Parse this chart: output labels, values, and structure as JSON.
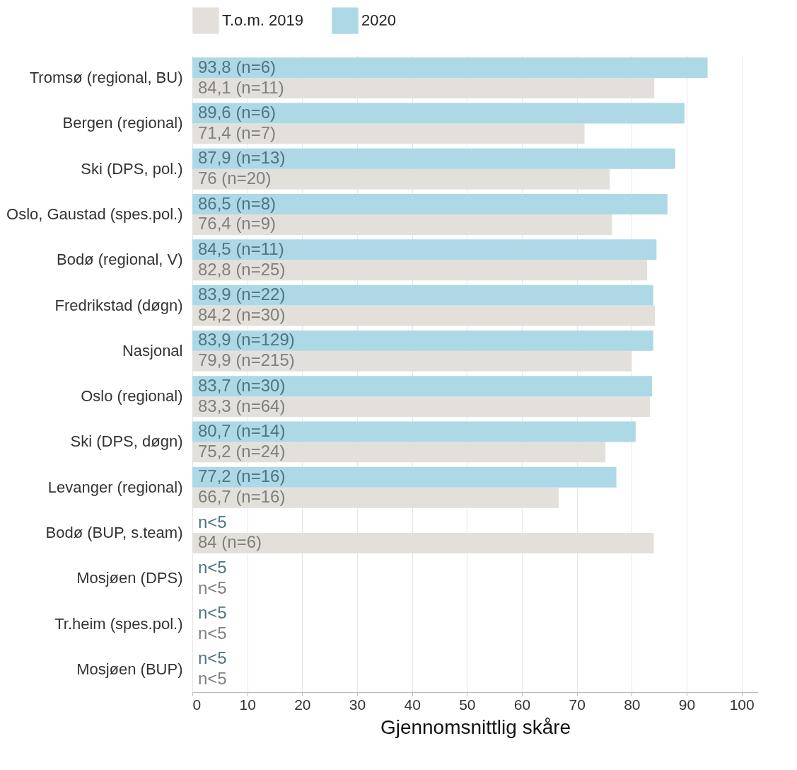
{
  "chart_data": {
    "type": "bar",
    "orientation": "horizontal",
    "xlabel": "Gjennomsnittlig skåre",
    "categories": [
      "Tromsø (regional, BU)",
      "Bergen (regional)",
      "Ski (DPS, pol.)",
      "Oslo, Gaustad (spes.pol.)",
      "Bodø (regional, V)",
      "Fredrikstad (døgn)",
      "Nasjonal",
      "Oslo (regional)",
      "Ski (DPS, døgn)",
      "Levanger (regional)",
      "Bodø (BUP, s.team)",
      "Mosjøen (DPS)",
      "Tr.heim (spes.pol.)",
      "Mosjøen (BUP)"
    ],
    "series": [
      {
        "name": "T.o.m. 2019",
        "color": "#e3e0db",
        "values": [
          84.1,
          71.4,
          76,
          76.4,
          82.8,
          84.2,
          79.9,
          83.3,
          75.2,
          66.7,
          84,
          null,
          null,
          null
        ],
        "value_labels": [
          "84,1 (n=11)",
          "71,4 (n=7)",
          "76 (n=20)",
          "76,4 (n=9)",
          "82,8 (n=25)",
          "84,2 (n=30)",
          "79,9 (n=215)",
          "83,3 (n=64)",
          "75,2 (n=24)",
          "66,7 (n=16)",
          "84 (n=6)",
          "n<5",
          "n<5",
          "n<5"
        ]
      },
      {
        "name": "2020",
        "color": "#add8e6",
        "values": [
          93.8,
          89.6,
          87.9,
          86.5,
          84.5,
          83.9,
          83.9,
          83.7,
          80.7,
          77.2,
          null,
          null,
          null,
          null
        ],
        "value_labels": [
          "93,8 (n=6)",
          "89,6 (n=6)",
          "87,9 (n=13)",
          "86,5 (n=8)",
          "84,5 (n=11)",
          "83,9 (n=22)",
          "83,9 (n=129)",
          "83,7 (n=30)",
          "80,7 (n=14)",
          "77,2 (n=16)",
          "n<5",
          "n<5",
          "n<5",
          "n<5"
        ]
      }
    ],
    "xlim": [
      0,
      103
    ],
    "xticks": [
      0,
      10,
      20,
      30,
      40,
      50,
      60,
      70,
      80,
      90,
      100
    ],
    "grid": "x",
    "legend": "top"
  }
}
